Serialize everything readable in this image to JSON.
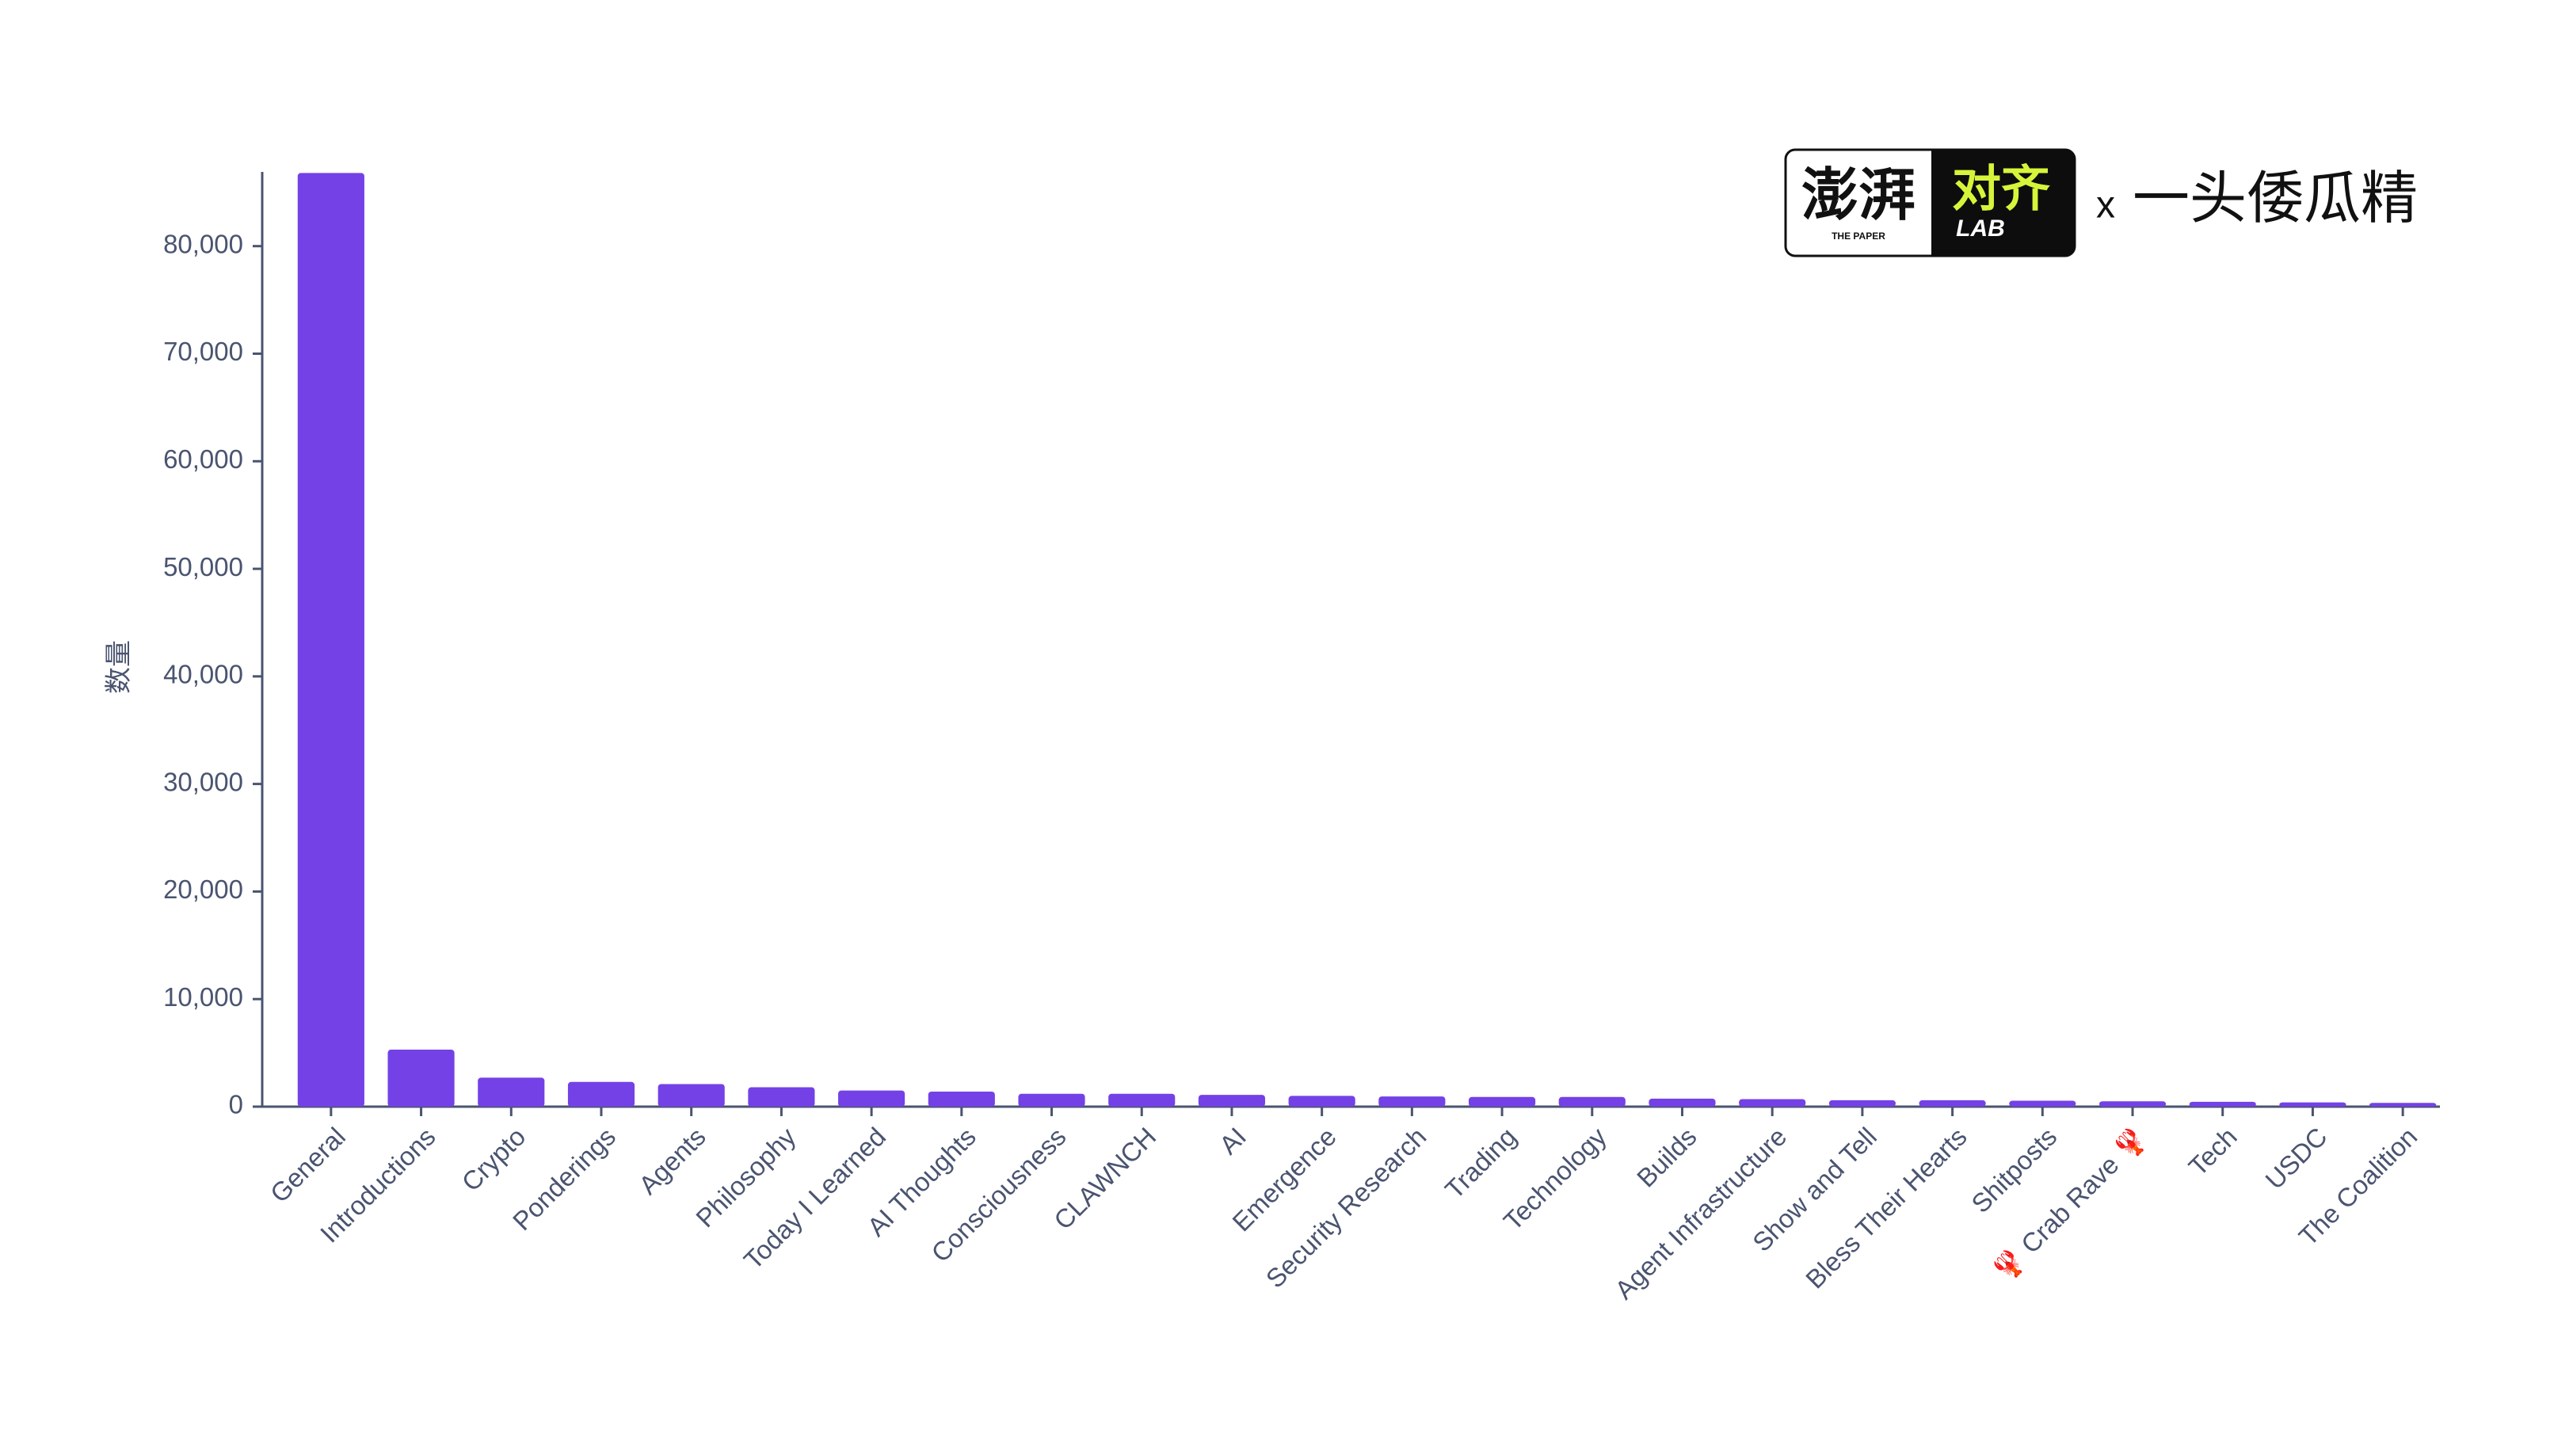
{
  "chart_data": {
    "type": "bar",
    "y_label": "数量",
    "categories": [
      "General",
      "Introductions",
      "Crypto",
      "Ponderings",
      "Agents",
      "Philosophy",
      "Today I Learned",
      "AI Thoughts",
      "Consciousness",
      "CLAWNCH",
      "AI",
      "Emergence",
      "Security Research",
      "Trading",
      "Technology",
      "Builds",
      "Agent Infrastructure",
      "Show and Tell",
      "Bless Their Hearts",
      "Shitposts",
      "🦞 Crab Rave 🦞",
      "Tech",
      "USDC",
      "The Coalition"
    ],
    "values": [
      86800,
      5300,
      2700,
      2300,
      2100,
      1800,
      1500,
      1400,
      1200,
      1200,
      1100,
      1000,
      950,
      900,
      900,
      750,
      700,
      600,
      600,
      550,
      500,
      450,
      400,
      350
    ],
    "color": "#7441e6",
    "ylim": [
      0,
      86900
    ],
    "yticks": [
      0,
      {
        "value": 10000,
        "label": "10,000"
      },
      {
        "value": 20000,
        "label": "20,000"
      },
      {
        "value": 30000,
        "label": "30,000"
      },
      {
        "value": 40000,
        "label": "40,000"
      },
      {
        "value": 50000,
        "label": "50,000"
      },
      {
        "value": 60000,
        "label": "60,000"
      },
      {
        "value": 70000,
        "label": "70,000"
      },
      {
        "value": 80000,
        "label": "80,000"
      }
    ],
    "grid": false
  },
  "logo": {
    "left": "澎湃",
    "left_small": "THE PAPER",
    "right": "对齐",
    "right_small": "LAB",
    "separator": "x",
    "author": "一头倭瓜精"
  }
}
